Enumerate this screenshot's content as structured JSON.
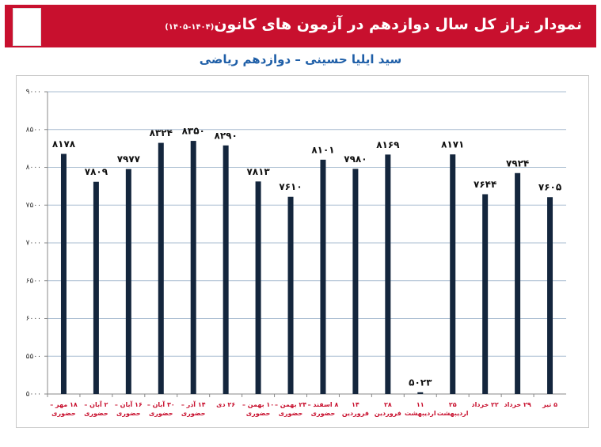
{
  "chart_data": {
    "type": "bar",
    "title": "نمودار تراز کل سال دوازدهم در آزمون های کانون",
    "title_suffix": "(۱۴۰۴-۱۴۰۵)",
    "subtitle": "سید ایلیا حسینی – دوازدهم ریاضی",
    "categories": [
      "۱۸ مهر – حضوری",
      "۲ آبان – حضوری",
      "۱۶ آبان – حضوری",
      "۳۰ آبان – حضوری",
      "۱۴ آذر – حضوری",
      "۲۶ دی",
      "۱۰ بهمن – حضوری",
      "۲۴ بهمن – حضوری",
      "۸ اسفند – حضوری",
      "۱۴ فروردین",
      "۲۸ فروردین",
      "۱۱ اردیبهشت",
      "۲۵ اردیبهشت",
      "۲۲ خرداد",
      "۲۹ خرداد",
      "۵ تیر"
    ],
    "values": [
      8178,
      7809,
      7977,
      8324,
      8350,
      8290,
      7813,
      7610,
      8101,
      7980,
      8169,
      5023,
      8171,
      7644,
      7924,
      7605
    ],
    "value_labels": [
      "۸۱۷۸",
      "۷۸۰۹",
      "۷۹۷۷",
      "۸۳۲۴",
      "۸۳۵۰",
      "۸۲۹۰",
      "۷۸۱۳",
      "۷۶۱۰",
      "۸۱۰۱",
      "۷۹۸۰",
      "۸۱۶۹",
      "۵۰۲۳",
      "۸۱۷۱",
      "۷۶۴۴",
      "۷۹۲۴",
      "۷۶۰۵"
    ],
    "color": "#14263d",
    "ylim": [
      5000,
      9000
    ],
    "yticks": [
      {
        "value": 5000,
        "label": "۵۰۰۰"
      },
      {
        "value": 5500,
        "label": "۵۵۰۰"
      },
      {
        "value": 6000,
        "label": "۶۰۰۰"
      },
      {
        "value": 6500,
        "label": "۶۵۰۰"
      },
      {
        "value": 7000,
        "label": "۷۰۰۰"
      },
      {
        "value": 7500,
        "label": "۷۵۰۰"
      },
      {
        "value": 8000,
        "label": "۸۰۰۰"
      },
      {
        "value": 8500,
        "label": "۸۵۰۰"
      },
      {
        "value": 9000,
        "label": "۹۰۰۰"
      }
    ],
    "grid": true
  }
}
